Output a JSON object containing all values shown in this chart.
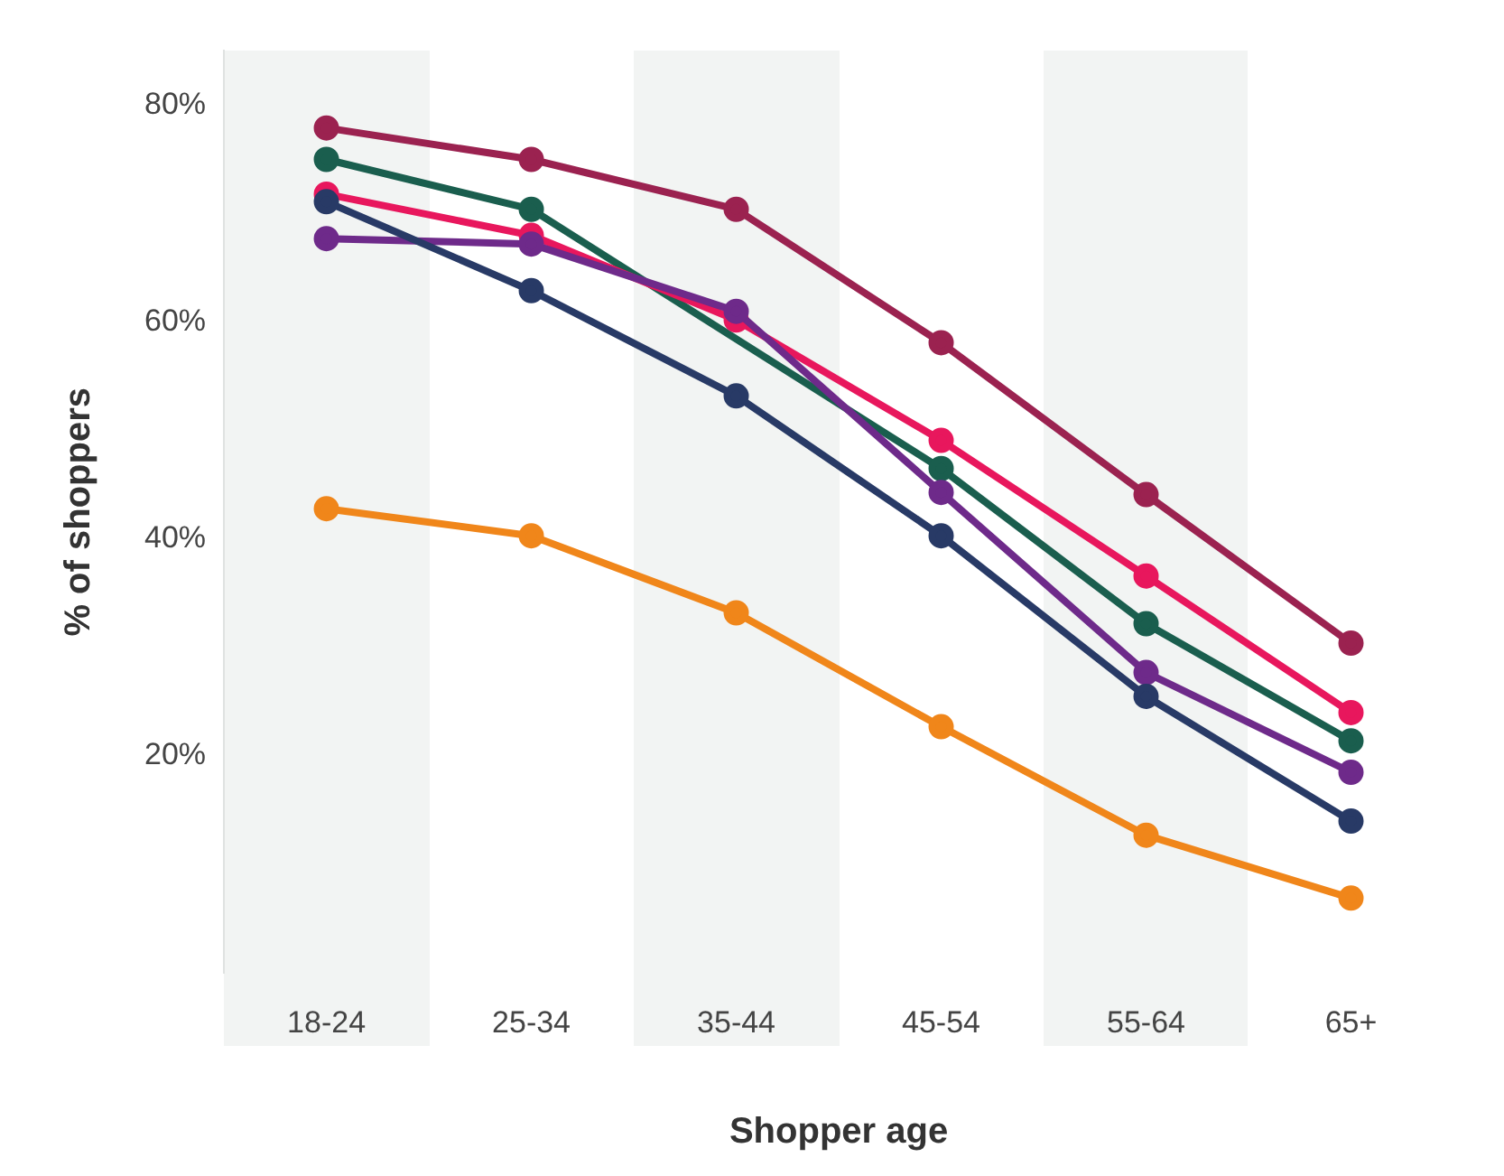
{
  "chart_data": {
    "type": "line",
    "xlabel": "Shopper age",
    "ylabel": "% of shoppers",
    "categories": [
      "18-24",
      "25-34",
      "35-44",
      "45-54",
      "55-64",
      "65+"
    ],
    "series": [
      {
        "color": "#9b2250",
        "values": [
          77.9,
          75.0,
          70.4,
          58.1,
          44.1,
          30.4
        ]
      },
      {
        "color": "#1a5e4e",
        "values": [
          75.0,
          70.4,
          null,
          46.5,
          32.2,
          21.4
        ]
      },
      {
        "color": "#e8175d",
        "values": [
          71.8,
          68.0,
          60.2,
          49.1,
          36.6,
          24.0
        ]
      },
      {
        "color": "#6e2a8a",
        "values": [
          67.7,
          67.2,
          61.0,
          44.3,
          27.7,
          18.5
        ]
      },
      {
        "color": "#283a66",
        "values": [
          71.1,
          62.9,
          53.2,
          40.3,
          25.5,
          14.0
        ]
      },
      {
        "color": "#f0861a",
        "values": [
          42.8,
          40.3,
          33.2,
          22.7,
          12.7,
          6.9
        ]
      }
    ],
    "ylim": [
      0,
      85
    ],
    "yticks": [
      {
        "value": 20,
        "label": "20%"
      },
      {
        "value": 40,
        "label": "40%"
      },
      {
        "value": 60,
        "label": "60%"
      },
      {
        "value": 80,
        "label": "80%"
      }
    ],
    "grid": false,
    "legend": false,
    "marker": "circle",
    "line_style": "solid"
  }
}
